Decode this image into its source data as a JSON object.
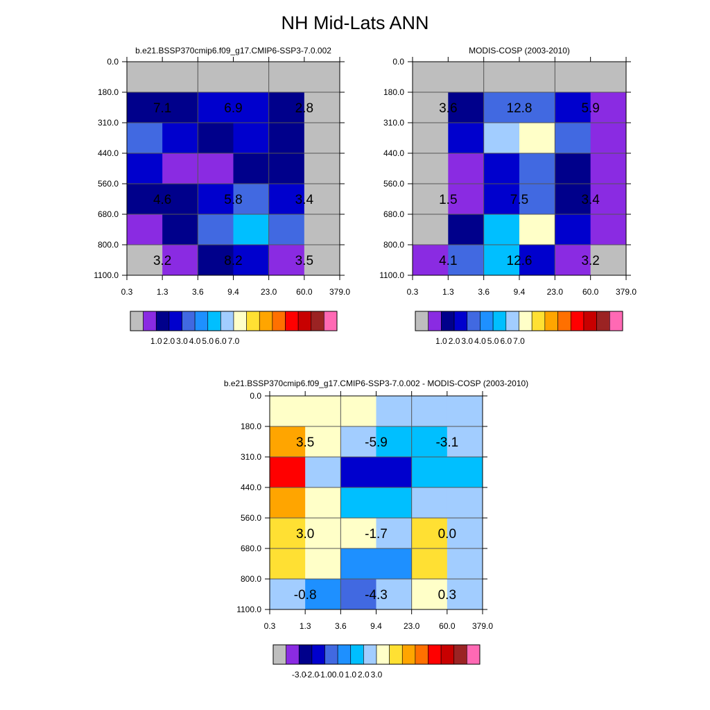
{
  "figure": {
    "title": "NH Mid-Lats ANN"
  },
  "colors": {
    "main_palette": [
      "#bebebe",
      "#8a2be2",
      "#00008b",
      "#0000cd",
      "#4169e1",
      "#1e90ff",
      "#00bfff",
      "#a2cdff",
      "#ffffc8",
      "#ffe033",
      "#ffa500",
      "#ff7000",
      "#ff0000",
      "#c80000",
      "#9b2323",
      "#ff69b4"
    ],
    "diff_palette": [
      "#bebebe",
      "#8a2be2",
      "#00008b",
      "#0000cd",
      "#4169e1",
      "#1e90ff",
      "#00bfff",
      "#a2cdff",
      "#ffffc8",
      "#ffe033",
      "#ffa500",
      "#ff7000",
      "#ff0000",
      "#c80000",
      "#9b2323",
      "#ff69b4"
    ]
  },
  "chart_data": [
    {
      "type": "heatmap",
      "title": "b.e21.BSSP370cmip6.f09_g17.CMIP6-SSP3-7.0.002",
      "x_tick_labels": [
        "0.3",
        "1.3",
        "3.6",
        "9.4",
        "23.0",
        "60.0",
        "379.0"
      ],
      "y_tick_labels": [
        "0.0",
        "180.0",
        "310.0",
        "440.0",
        "560.0",
        "680.0",
        "800.0",
        "1100.0"
      ],
      "grid": true,
      "cell_colors": [
        [
          0,
          0,
          0,
          0,
          0,
          0
        ],
        [
          2,
          2,
          3,
          3,
          2,
          0
        ],
        [
          4,
          3,
          2,
          3,
          2,
          0
        ],
        [
          3,
          1,
          1,
          2,
          2,
          0
        ],
        [
          2,
          2,
          3,
          4,
          3,
          0
        ],
        [
          1,
          2,
          4,
          6,
          4,
          0
        ],
        [
          0,
          1,
          2,
          3,
          1,
          0
        ]
      ],
      "annotations": [
        {
          "row": 1,
          "col": 0,
          "text": "7.1"
        },
        {
          "row": 1,
          "col": 2,
          "text": "6.9"
        },
        {
          "row": 1,
          "col": 4,
          "text": "2.8"
        },
        {
          "row": 4,
          "col": 0,
          "text": "4.6"
        },
        {
          "row": 4,
          "col": 2,
          "text": "5.8"
        },
        {
          "row": 4,
          "col": 4,
          "text": "3.4"
        },
        {
          "row": 6,
          "col": 0,
          "text": "3.2"
        },
        {
          "row": 6,
          "col": 2,
          "text": "8.2"
        },
        {
          "row": 6,
          "col": 4,
          "text": "3.5"
        }
      ],
      "colorbar": {
        "palette": "main_palette",
        "labels": [
          "1.0",
          "2.0",
          "3.0",
          "4.0",
          "5.0",
          "6.0",
          "7.0"
        ],
        "first_label_boundary": 2
      }
    },
    {
      "type": "heatmap",
      "title": "MODIS-COSP (2003-2010)",
      "x_tick_labels": [
        "0.3",
        "1.3",
        "3.6",
        "9.4",
        "23.0",
        "60.0",
        "379.0"
      ],
      "y_tick_labels": [
        "0.0",
        "180.0",
        "310.0",
        "440.0",
        "560.0",
        "680.0",
        "800.0",
        "1100.0"
      ],
      "grid": true,
      "cell_colors": [
        [
          0,
          0,
          0,
          0,
          0,
          0
        ],
        [
          0,
          2,
          4,
          4,
          3,
          1
        ],
        [
          0,
          3,
          7,
          8,
          4,
          1
        ],
        [
          0,
          1,
          3,
          4,
          2,
          1
        ],
        [
          0,
          1,
          3,
          4,
          2,
          1
        ],
        [
          0,
          2,
          6,
          8,
          3,
          1
        ],
        [
          1,
          4,
          6,
          3,
          1,
          0
        ]
      ],
      "annotations": [
        {
          "row": 1,
          "col": 0,
          "text": "3.6"
        },
        {
          "row": 1,
          "col": 2,
          "text": "12.8"
        },
        {
          "row": 1,
          "col": 4,
          "text": "5.9"
        },
        {
          "row": 4,
          "col": 0,
          "text": "1.5"
        },
        {
          "row": 4,
          "col": 2,
          "text": "7.5"
        },
        {
          "row": 4,
          "col": 4,
          "text": "3.4"
        },
        {
          "row": 6,
          "col": 0,
          "text": "4.1"
        },
        {
          "row": 6,
          "col": 2,
          "text": "12.6"
        },
        {
          "row": 6,
          "col": 4,
          "text": "3.2"
        }
      ],
      "colorbar": {
        "palette": "main_palette",
        "labels": [
          "1.0",
          "2.0",
          "3.0",
          "4.0",
          "5.0",
          "6.0",
          "7.0"
        ],
        "first_label_boundary": 2
      }
    },
    {
      "type": "heatmap",
      "title": "b.e21.BSSP370cmip6.f09_g17.CMIP6-SSP3-7.0.002 - MODIS-COSP (2003-2010)",
      "x_tick_labels": [
        "0.3",
        "1.3",
        "3.6",
        "9.4",
        "23.0",
        "60.0",
        "379.0"
      ],
      "y_tick_labels": [
        "0.0",
        "180.0",
        "310.0",
        "440.0",
        "560.0",
        "680.0",
        "800.0",
        "1100.0"
      ],
      "grid": true,
      "cell_colors": [
        [
          8,
          8,
          8,
          7,
          7,
          7
        ],
        [
          10,
          8,
          7,
          6,
          6,
          7
        ],
        [
          12,
          7,
          3,
          3,
          6,
          6
        ],
        [
          10,
          8,
          6,
          6,
          7,
          7
        ],
        [
          9,
          8,
          8,
          7,
          9,
          7
        ],
        [
          9,
          8,
          5,
          5,
          9,
          7
        ],
        [
          7,
          5,
          4,
          7,
          8,
          7
        ]
      ],
      "annotations": [
        {
          "row": 1,
          "col": 0,
          "text": "3.5"
        },
        {
          "row": 1,
          "col": 2,
          "text": "-5.9"
        },
        {
          "row": 1,
          "col": 4,
          "text": "-3.1"
        },
        {
          "row": 4,
          "col": 0,
          "text": "3.0"
        },
        {
          "row": 4,
          "col": 2,
          "text": "-1.7"
        },
        {
          "row": 4,
          "col": 4,
          "text": "0.0"
        },
        {
          "row": 6,
          "col": 0,
          "text": "-0.8"
        },
        {
          "row": 6,
          "col": 2,
          "text": "-4.3"
        },
        {
          "row": 6,
          "col": 4,
          "text": "0.3"
        }
      ],
      "colorbar": {
        "palette": "diff_palette",
        "labels": [
          "-3.0",
          "-2.0",
          "-1.0",
          "0.0",
          "1.0",
          "2.0",
          "3.0"
        ],
        "first_label_boundary": 2
      }
    }
  ]
}
